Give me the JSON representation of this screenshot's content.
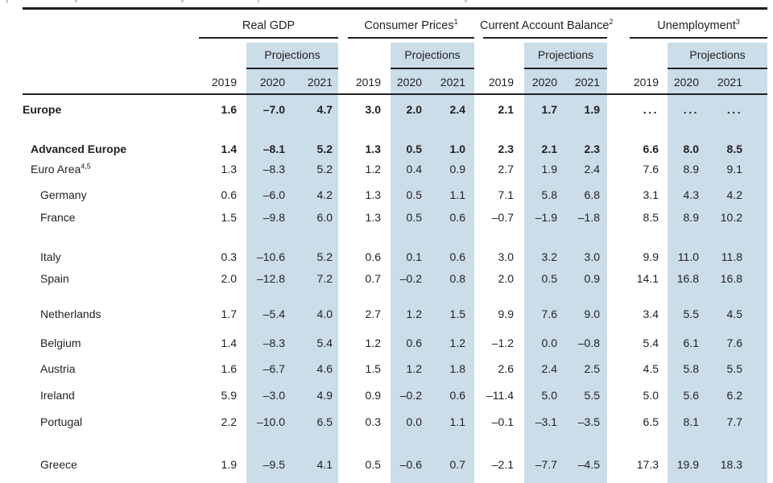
{
  "table": {
    "column_groups": [
      {
        "title": "Real GDP",
        "sup": ""
      },
      {
        "title": "Consumer Prices",
        "sup": "1"
      },
      {
        "title": "Current Account Balance",
        "sup": "2"
      },
      {
        "title": "Unemployment",
        "sup": "3"
      }
    ],
    "projections_label": "Projections",
    "years": [
      "2019",
      "2020",
      "2021"
    ],
    "rows": [
      {
        "label": "Europe",
        "sup": "",
        "bold": true,
        "indent": 0,
        "values": [
          "1.6",
          "–7.0",
          "4.7",
          "3.0",
          "2.0",
          "2.4",
          "2.1",
          "1.7",
          "1.9",
          "...",
          "...",
          "..."
        ]
      },
      {
        "label": "Advanced Europe",
        "sup": "",
        "bold": true,
        "indent": 1,
        "values": [
          "1.4",
          "–8.1",
          "5.2",
          "1.3",
          "0.5",
          "1.0",
          "2.3",
          "2.1",
          "2.3",
          "6.6",
          "8.0",
          "8.5"
        ]
      },
      {
        "label": "Euro Area",
        "sup": "4,5",
        "bold": false,
        "indent": 1,
        "values": [
          "1.3",
          "–8.3",
          "5.2",
          "1.2",
          "0.4",
          "0.9",
          "2.7",
          "1.9",
          "2.4",
          "7.6",
          "8.9",
          "9.1"
        ]
      },
      {
        "label": "Germany",
        "sup": "",
        "bold": false,
        "indent": 2,
        "values": [
          "0.6",
          "–6.0",
          "4.2",
          "1.3",
          "0.5",
          "1.1",
          "7.1",
          "5.8",
          "6.8",
          "3.1",
          "4.3",
          "4.2"
        ]
      },
      {
        "label": "France",
        "sup": "",
        "bold": false,
        "indent": 2,
        "values": [
          "1.5",
          "–9.8",
          "6.0",
          "1.3",
          "0.5",
          "0.6",
          "–0.7",
          "–1.9",
          "–1.8",
          "8.5",
          "8.9",
          "10.2"
        ]
      },
      {
        "label": "Italy",
        "sup": "",
        "bold": false,
        "indent": 2,
        "values": [
          "0.3",
          "–10.6",
          "5.2",
          "0.6",
          "0.1",
          "0.6",
          "3.0",
          "3.2",
          "3.0",
          "9.9",
          "11.0",
          "11.8"
        ]
      },
      {
        "label": "Spain",
        "sup": "",
        "bold": false,
        "indent": 2,
        "values": [
          "2.0",
          "–12.8",
          "7.2",
          "0.7",
          "–0.2",
          "0.8",
          "2.0",
          "0.5",
          "0.9",
          "14.1",
          "16.8",
          "16.8"
        ]
      },
      {
        "label": "Netherlands",
        "sup": "",
        "bold": false,
        "indent": 2,
        "values": [
          "1.7",
          "–5.4",
          "4.0",
          "2.7",
          "1.2",
          "1.5",
          "9.9",
          "7.6",
          "9.0",
          "3.4",
          "5.5",
          "4.5"
        ]
      },
      {
        "label": "Belgium",
        "sup": "",
        "bold": false,
        "indent": 2,
        "values": [
          "1.4",
          "–8.3",
          "5.4",
          "1.2",
          "0.6",
          "1.2",
          "–1.2",
          "0.0",
          "–0.8",
          "5.4",
          "6.1",
          "7.6"
        ]
      },
      {
        "label": "Austria",
        "sup": "",
        "bold": false,
        "indent": 2,
        "values": [
          "1.6",
          "–6.7",
          "4.6",
          "1.5",
          "1.2",
          "1.8",
          "2.6",
          "2.4",
          "2.5",
          "4.5",
          "5.8",
          "5.5"
        ]
      },
      {
        "label": "Ireland",
        "sup": "",
        "bold": false,
        "indent": 2,
        "values": [
          "5.9",
          "–3.0",
          "4.9",
          "0.9",
          "–0.2",
          "0.6",
          "–11.4",
          "5.0",
          "5.5",
          "5.0",
          "5.6",
          "6.2"
        ]
      },
      {
        "label": "Portugal",
        "sup": "",
        "bold": false,
        "indent": 2,
        "values": [
          "2.2",
          "–10.0",
          "6.5",
          "0.3",
          "0.0",
          "1.1",
          "–0.1",
          "–3.1",
          "–3.5",
          "6.5",
          "8.1",
          "7.7"
        ]
      },
      {
        "label": "Greece",
        "sup": "",
        "bold": false,
        "indent": 2,
        "values": [
          "1.9",
          "–9.5",
          "4.1",
          "0.5",
          "–0.6",
          "0.7",
          "–2.1",
          "–7.7",
          "–4.5",
          "17.3",
          "19.9",
          "18.3"
        ]
      }
    ],
    "colors": {
      "projection_band": "#cbdde9",
      "rule": "#231f20",
      "text": "#231f20"
    }
  }
}
